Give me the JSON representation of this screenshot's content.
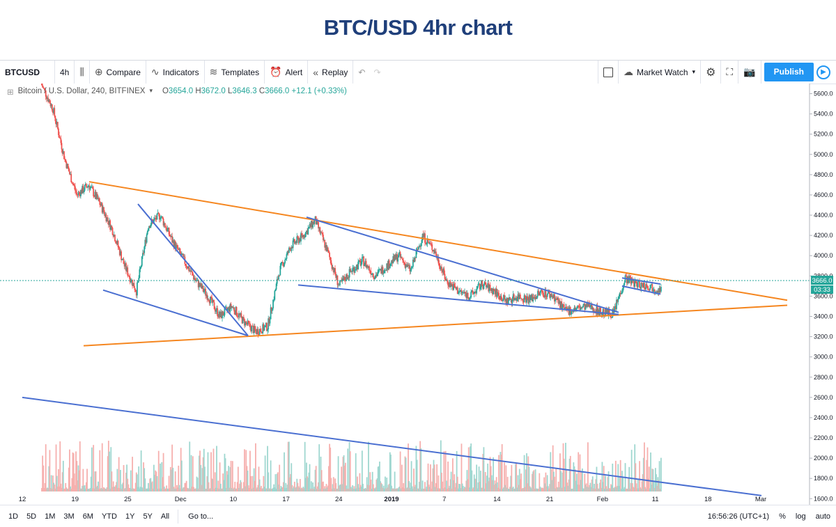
{
  "page_title": "BTC/USD 4hr chart",
  "toolbar": {
    "symbol": "BTCUSD",
    "interval": "4h",
    "compare": "Compare",
    "indicators": "Indicators",
    "templates": "Templates",
    "alert": "Alert",
    "replay": "Replay",
    "market_watch": "Market Watch",
    "publish": "Publish"
  },
  "legend": {
    "title": "Bitcoin / U.S. Dollar, 240, BITFINEX",
    "open_label": "O",
    "open": "3654.0",
    "high_label": "H",
    "high": "3672.0",
    "low_label": "L",
    "low": "3646.3",
    "close_label": "C",
    "close": "3666.0",
    "change": "+12.1 (+0.33%)"
  },
  "price_tag": {
    "value": "3666.0",
    "countdown": "03:33"
  },
  "bottom": {
    "ranges": [
      "1D",
      "5D",
      "1M",
      "3M",
      "6M",
      "YTD",
      "1Y",
      "5Y",
      "All"
    ],
    "goto": "Go to...",
    "time": "16:56:26 (UTC+1)",
    "percent": "%",
    "log": "log",
    "auto": "auto"
  },
  "colors": {
    "up": "#26a69a",
    "down": "#ef5350",
    "trend_orange": "#f5861f",
    "trend_blue": "#4a6fd1",
    "accent": "#2196f3"
  },
  "chart_data": {
    "type": "candlestick",
    "y_axis_labels": [
      "5600.0",
      "5400.0",
      "5200.0",
      "5000.0",
      "4800.0",
      "4600.0",
      "4400.0",
      "4200.0",
      "4000.0",
      "3800.0",
      "3600.0",
      "3400.0",
      "3200.0",
      "3000.0",
      "2800.0",
      "2600.0",
      "2400.0",
      "2200.0",
      "2000.0",
      "1800.0",
      "1600.0"
    ],
    "ylim": [
      1540,
      5700
    ],
    "x_axis_labels": [
      "12",
      "19",
      "25",
      "Dec",
      "10",
      "17",
      "24",
      "2019",
      "7",
      "14",
      "21",
      "Feb",
      "11",
      "18",
      "Mar"
    ],
    "series_close": [
      5700,
      5450,
      4950,
      4600,
      4700,
      4500,
      4250,
      3900,
      3650,
      4300,
      4400,
      4150,
      3950,
      3750,
      3600,
      3400,
      3500,
      3350,
      3250,
      3300,
      3850,
      4100,
      4200,
      4350,
      4050,
      3700,
      3850,
      3950,
      3800,
      3900,
      4000,
      3850,
      4200,
      4050,
      3750,
      3650,
      3600,
      3720,
      3650,
      3550,
      3600,
      3570,
      3640,
      3600,
      3450,
      3480,
      3500,
      3440,
      3430,
      3780,
      3720,
      3700,
      3666
    ],
    "current_close": 3666.0,
    "trendlines": [
      {
        "name": "upper-orange",
        "from": {
          "date": "Nov 20",
          "price": 4730
        },
        "to": {
          "date": "Mar 5",
          "price": 3560
        }
      },
      {
        "name": "lower-orange",
        "from": {
          "date": "Nov 19",
          "price": 3110
        },
        "to": {
          "date": "Mar 5",
          "price": 3510
        }
      },
      {
        "name": "wedge-blue-upper",
        "from": {
          "date": "Nov 28",
          "price": 4510
        },
        "to": {
          "date": "Dec 15",
          "price": 3210
        }
      },
      {
        "name": "wedge-blue-lower",
        "from": {
          "date": "Nov 25",
          "price": 3660
        },
        "to": {
          "date": "Dec 15",
          "price": 3210
        }
      },
      {
        "name": "blue-upper-2",
        "from": {
          "date": "Dec 24",
          "price": 4380
        },
        "to": {
          "date": "Feb 8",
          "price": 3440
        }
      },
      {
        "name": "blue-lower-2",
        "from": {
          "date": "Dec 23",
          "price": 3710
        },
        "to": {
          "date": "Feb 8",
          "price": 3420
        }
      },
      {
        "name": "flag-upper",
        "from": {
          "date": "Feb 9",
          "price": 3780
        },
        "to": {
          "date": "Feb 13",
          "price": 3720
        }
      },
      {
        "name": "flag-lower",
        "from": {
          "date": "Feb 9",
          "price": 3700
        },
        "to": {
          "date": "Feb 13",
          "price": 3620
        }
      },
      {
        "name": "volume-trend",
        "from": {
          "date": "Nov 12",
          "price": 2600
        },
        "to": {
          "date": "Mar 1",
          "price": 1630
        }
      }
    ]
  }
}
